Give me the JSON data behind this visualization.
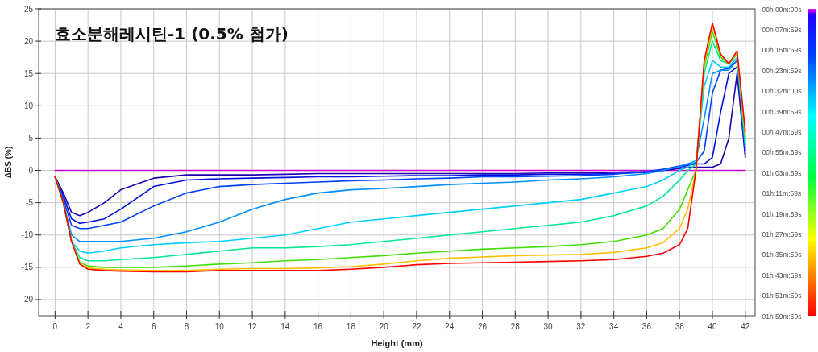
{
  "chart_data": {
    "type": "line",
    "title": "효소분해레시틴-1 (0.5% 첨가)",
    "xlabel": "Height (mm)",
    "ylabel": "ΔBS (%)",
    "x": [
      0,
      0.5,
      1,
      1.5,
      2,
      3,
      4,
      6,
      8,
      10,
      12,
      14,
      16,
      18,
      20,
      22,
      24,
      26,
      28,
      30,
      32,
      34,
      36,
      37,
      38,
      38.5,
      39,
      39.5,
      40,
      40.5,
      41,
      41.5,
      42
    ],
    "xlim": [
      -1,
      42.6
    ],
    "xticks": [
      0,
      2,
      4,
      6,
      8,
      10,
      12,
      14,
      16,
      18,
      20,
      22,
      24,
      26,
      28,
      30,
      32,
      34,
      36,
      38,
      40,
      42
    ],
    "ylim": [
      -22.5,
      25
    ],
    "yticks": [
      -20,
      -15,
      -10,
      -5,
      0,
      5,
      10,
      15,
      20,
      25
    ],
    "grid": true,
    "clim": [
      0,
      120
    ],
    "cticks": [
      {
        "value": 0,
        "label": "00h:00m:00s"
      },
      {
        "value": 8,
        "label": "00h:07m:59s"
      },
      {
        "value": 16,
        "label": "00h:15m:59s"
      },
      {
        "value": 24,
        "label": "00h:23m:59s"
      },
      {
        "value": 32,
        "label": "00h:32m:00s"
      },
      {
        "value": 40,
        "label": "00h:39m:59s"
      },
      {
        "value": 48,
        "label": "00h:47m:59s"
      },
      {
        "value": 56,
        "label": "00h:55m:59s"
      },
      {
        "value": 64,
        "label": "01h:03m:59s"
      },
      {
        "value": 72,
        "label": "01h:11m:59s"
      },
      {
        "value": 80,
        "label": "01h:19m:59s"
      },
      {
        "value": 88,
        "label": "01h:27m:59s"
      },
      {
        "value": 96,
        "label": "01h:35m:59s"
      },
      {
        "value": 104,
        "label": "01h:43m:59s"
      },
      {
        "value": 112,
        "label": "01h:51m:59s"
      },
      {
        "value": 120,
        "label": "01h:59m:59s"
      }
    ],
    "series": [
      {
        "color": "#cc00cc",
        "values": [
          0,
          0,
          0,
          0,
          0,
          0,
          0,
          0,
          0,
          0,
          0,
          0,
          0,
          0,
          0,
          0,
          0,
          0,
          0,
          0,
          0,
          0,
          0,
          0,
          0,
          0,
          0,
          0,
          0,
          0,
          0,
          0,
          0
        ]
      },
      {
        "color": "#2000b0",
        "values": [
          -1,
          -3.5,
          -6.5,
          -7,
          -6.5,
          -5,
          -3,
          -1.2,
          -0.7,
          -0.7,
          -0.7,
          -0.6,
          -0.5,
          -0.5,
          -0.5,
          -0.5,
          -0.5,
          -0.5,
          -0.5,
          -0.4,
          -0.4,
          -0.3,
          -0.2,
          0,
          0.3,
          0.5,
          0.5,
          0.5,
          0.5,
          1,
          5,
          15,
          2
        ]
      },
      {
        "color": "#0010e0",
        "values": [
          -1,
          -4,
          -7.5,
          -8.2,
          -8,
          -7.5,
          -6,
          -2.5,
          -1.5,
          -1.3,
          -1.2,
          -1.1,
          -1,
          -1,
          -0.9,
          -0.8,
          -0.8,
          -0.7,
          -0.7,
          -0.6,
          -0.6,
          -0.5,
          -0.3,
          0,
          0.5,
          0.8,
          1,
          1,
          2,
          9,
          15,
          16,
          2.5
        ]
      },
      {
        "color": "#0040ff",
        "values": [
          -1,
          -4.5,
          -8.5,
          -9,
          -9,
          -8.5,
          -8,
          -5.5,
          -3.5,
          -2.5,
          -2.2,
          -2,
          -1.8,
          -1.6,
          -1.5,
          -1.3,
          -1.2,
          -1,
          -1,
          -0.9,
          -0.8,
          -0.6,
          -0.2,
          0.2,
          0.7,
          1,
          1.2,
          3,
          12,
          15.5,
          15.8,
          17,
          3
        ]
      },
      {
        "color": "#0090ff",
        "values": [
          -1,
          -5,
          -10,
          -11,
          -11,
          -11,
          -11,
          -10.5,
          -9.5,
          -8,
          -6,
          -4.5,
          -3.5,
          -3,
          -2.8,
          -2.5,
          -2.2,
          -2,
          -1.8,
          -1.5,
          -1.3,
          -1,
          -0.5,
          0,
          0.6,
          1,
          1.5,
          8,
          15,
          15.5,
          15.5,
          17,
          3.5
        ]
      },
      {
        "color": "#00d0ff",
        "values": [
          -1,
          -5,
          -11,
          -12.5,
          -12.8,
          -12.5,
          -12,
          -11.5,
          -11.2,
          -11,
          -10.5,
          -10,
          -9,
          -8,
          -7.5,
          -7,
          -6.5,
          -6,
          -5.5,
          -5,
          -4.5,
          -3.5,
          -2.5,
          -1.5,
          0,
          0.5,
          1.5,
          13,
          17,
          16,
          16,
          17.5,
          4
        ]
      },
      {
        "color": "#00e890",
        "values": [
          -1,
          -5,
          -11,
          -13.5,
          -14,
          -14,
          -13.8,
          -13.5,
          -13,
          -12.5,
          -12,
          -12,
          -11.8,
          -11.5,
          -11,
          -10.5,
          -10,
          -9.5,
          -9,
          -8.5,
          -8,
          -7,
          -5.5,
          -4,
          -1.5,
          0,
          1,
          15,
          20,
          17,
          16.5,
          18,
          4.5
        ]
      },
      {
        "color": "#40e000",
        "values": [
          -1,
          -5,
          -11,
          -14.2,
          -14.8,
          -15,
          -15,
          -15,
          -14.8,
          -14.5,
          -14.3,
          -14,
          -13.8,
          -13.5,
          -13.2,
          -12.8,
          -12.5,
          -12.2,
          -12,
          -11.8,
          -11.5,
          -11,
          -10,
          -9,
          -6,
          -3,
          0,
          16,
          21.5,
          17.5,
          16.5,
          18,
          5
        ]
      },
      {
        "color": "#ffc000",
        "values": [
          null,
          null,
          -11,
          -14.4,
          -15.1,
          -15.3,
          -15.4,
          -15.5,
          -15.5,
          -15.3,
          -15.2,
          -15.2,
          -15.1,
          -14.9,
          -14.5,
          -14,
          -13.6,
          -13.4,
          -13.2,
          -13.1,
          -13,
          -12.7,
          -12,
          -11.2,
          -9,
          -6,
          0,
          16.5,
          22.5,
          18,
          16.5,
          18.3,
          5.5
        ]
      },
      {
        "color": "#ff0000",
        "values": [
          -1,
          -5,
          -11,
          -14.5,
          -15.3,
          -15.5,
          -15.6,
          -15.7,
          -15.7,
          -15.5,
          -15.5,
          -15.5,
          -15.5,
          -15.3,
          -15,
          -14.6,
          -14.4,
          -14.3,
          -14.2,
          -14.1,
          -14,
          -13.8,
          -13.3,
          -12.8,
          -11.5,
          -9,
          0,
          17,
          22.8,
          18,
          16.5,
          18.5,
          6
        ]
      }
    ]
  }
}
